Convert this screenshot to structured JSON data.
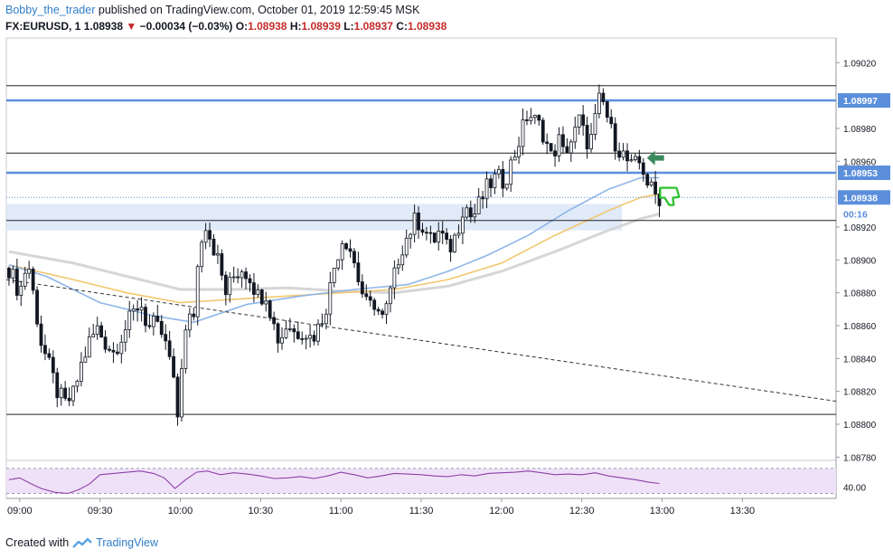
{
  "header": {
    "author": "Bobby_the_trader",
    "published": "published on TradingView.com, October 01, 2019 12:59:45 MSK",
    "symbol": "FX:EURUSD, 1",
    "price": "1.08938",
    "change_arrow": "▼",
    "change": "−0.00034 (−0.03%)",
    "o_label": "O:",
    "o_value": "1.08938",
    "h_label": "H:",
    "h_value": "1.08939",
    "l_label": "L:",
    "l_value": "1.08937",
    "c_label": "C:",
    "c_value": "1.08938"
  },
  "footer": {
    "created_with": "Created with",
    "brand": "TradingView",
    "logo_icon": "tradingview-logo-icon"
  },
  "colors": {
    "candle": "#131722",
    "sma_blue": "#8fb6e8",
    "sma_yellow": "#f2c66d",
    "sma_gray": "#d6d6d6",
    "level_blue": "#5b8fdc",
    "zone": "#dbe6f7",
    "rsi_line": "#8e3fa8",
    "rsi_band": "#efe2f8",
    "arrow_green": "#3b8a5e",
    "thumb_green": "#2cc12c"
  },
  "chart_data": {
    "type": "candlestick",
    "symbol": "FX:EURUSD",
    "interval": "1",
    "ylim": [
      1.08778,
      1.09035
    ],
    "y_ticks": [
      1.0878,
      1.088,
      1.0882,
      1.0884,
      1.0886,
      1.0888,
      1.089,
      1.0892,
      1.0896,
      1.0898,
      1.0902
    ],
    "y_tick_labels": [
      "1.08780",
      "1.08800",
      "1.08820",
      "1.08840",
      "1.08860",
      "1.08880",
      "1.08900",
      "1.08920",
      "1.08960",
      "1.08980",
      "1.09020"
    ],
    "x_ticks": [
      "09:00",
      "09:30",
      "10:00",
      "10:30",
      "11:00",
      "11:30",
      "12:00",
      "12:30",
      "13:00",
      "13:30"
    ],
    "x_tick_minutes": [
      540,
      570,
      600,
      630,
      660,
      690,
      720,
      750,
      780,
      810
    ],
    "xlim_minutes": [
      535,
      845
    ],
    "last_bar_minute": 779,
    "close_path": [
      [
        536,
        1.08895
      ],
      [
        540,
        1.0888
      ],
      [
        543,
        1.089
      ],
      [
        546,
        1.0887
      ],
      [
        548,
        1.0885
      ],
      [
        551,
        1.08835
      ],
      [
        554,
        1.0882
      ],
      [
        557,
        1.08812
      ],
      [
        560,
        1.08818
      ],
      [
        563,
        1.08836
      ],
      [
        566,
        1.0885
      ],
      [
        569,
        1.08858
      ],
      [
        572,
        1.0885
      ],
      [
        575,
        1.08844
      ],
      [
        578,
        1.08854
      ],
      [
        582,
        1.08866
      ],
      [
        585,
        1.08875
      ],
      [
        588,
        1.08858
      ],
      [
        590,
        1.0886
      ],
      [
        593,
        1.08855
      ],
      [
        596,
        1.0884
      ],
      [
        598,
        1.08818
      ],
      [
        599,
        1.08805
      ],
      [
        601,
        1.08848
      ],
      [
        603,
        1.08862
      ],
      [
        605,
        1.08868
      ],
      [
        607,
        1.08905
      ],
      [
        609,
        1.08925
      ],
      [
        611,
        1.08915
      ],
      [
        614,
        1.089
      ],
      [
        617,
        1.0888
      ],
      [
        620,
        1.0889
      ],
      [
        623,
        1.08895
      ],
      [
        626,
        1.0889
      ],
      [
        629,
        1.08878
      ],
      [
        632,
        1.0888
      ],
      [
        635,
        1.0886
      ],
      [
        637,
        1.0885
      ],
      [
        640,
        1.08862
      ],
      [
        643,
        1.08855
      ],
      [
        646,
        1.08858
      ],
      [
        649,
        1.08852
      ],
      [
        652,
        1.0886
      ],
      [
        655,
        1.08875
      ],
      [
        658,
        1.089
      ],
      [
        661,
        1.08915
      ],
      [
        664,
        1.08905
      ],
      [
        667,
        1.08885
      ],
      [
        670,
        1.0887
      ],
      [
        673,
        1.08875
      ],
      [
        675,
        1.08862
      ],
      [
        677,
        1.0887
      ],
      [
        680,
        1.0889
      ],
      [
        682,
        1.08905
      ],
      [
        685,
        1.08915
      ],
      [
        688,
        1.08925
      ],
      [
        691,
        1.0892
      ],
      [
        694,
        1.0891
      ],
      [
        697,
        1.08918
      ],
      [
        700,
        1.08905
      ],
      [
        703,
        1.08915
      ],
      [
        706,
        1.08935
      ],
      [
        709,
        1.08925
      ],
      [
        712,
        1.08935
      ],
      [
        715,
        1.08945
      ],
      [
        718,
        1.0895
      ],
      [
        721,
        1.08948
      ],
      [
        724,
        1.0896
      ],
      [
        726,
        1.0897
      ],
      [
        728,
        1.0898
      ],
      [
        730,
        1.0899
      ],
      [
        732,
        1.08985
      ],
      [
        735,
        1.0898
      ],
      [
        737,
        1.0897
      ],
      [
        739,
        1.0896
      ],
      [
        741,
        1.08975
      ],
      [
        743,
        1.08965
      ],
      [
        745,
        1.0897
      ],
      [
        747,
        1.08975
      ],
      [
        749,
        1.08985
      ],
      [
        751,
        1.08975
      ],
      [
        753,
        1.0897
      ],
      [
        755,
        1.08985
      ],
      [
        757,
        1.09
      ],
      [
        759,
        1.0899
      ],
      [
        761,
        1.08978
      ],
      [
        763,
        1.0897
      ],
      [
        765,
        1.08965
      ],
      [
        767,
        1.0896
      ],
      [
        769,
        1.08955
      ],
      [
        771,
        1.0896
      ],
      [
        773,
        1.08955
      ],
      [
        775,
        1.08945
      ],
      [
        777,
        1.0894
      ],
      [
        779,
        1.08938
      ]
    ],
    "sma_blue": [
      [
        536,
        1.08897
      ],
      [
        550,
        1.0889
      ],
      [
        570,
        1.08874
      ],
      [
        590,
        1.08866
      ],
      [
        605,
        1.08862
      ],
      [
        625,
        1.08873
      ],
      [
        645,
        1.08878
      ],
      [
        665,
        1.08882
      ],
      [
        685,
        1.08885
      ],
      [
        700,
        1.08893
      ],
      [
        715,
        1.08903
      ],
      [
        730,
        1.08915
      ],
      [
        745,
        1.0893
      ],
      [
        760,
        1.08943
      ],
      [
        772,
        1.0895
      ],
      [
        779,
        1.0895
      ]
    ],
    "sma_yellow": [
      [
        536,
        1.08897
      ],
      [
        560,
        1.08888
      ],
      [
        580,
        1.0888
      ],
      [
        600,
        1.08874
      ],
      [
        620,
        1.08876
      ],
      [
        640,
        1.08878
      ],
      [
        660,
        1.0888
      ],
      [
        680,
        1.08882
      ],
      [
        700,
        1.08888
      ],
      [
        720,
        1.08898
      ],
      [
        740,
        1.08915
      ],
      [
        760,
        1.0893
      ],
      [
        772,
        1.08938
      ],
      [
        779,
        1.0894
      ]
    ],
    "sma_gray": [
      [
        536,
        1.08905
      ],
      [
        560,
        1.08898
      ],
      [
        580,
        1.0889
      ],
      [
        600,
        1.08882
      ],
      [
        620,
        1.08882
      ],
      [
        640,
        1.08883
      ],
      [
        660,
        1.08881
      ],
      [
        680,
        1.0888
      ],
      [
        700,
        1.08884
      ],
      [
        720,
        1.08893
      ],
      [
        740,
        1.08905
      ],
      [
        760,
        1.08918
      ],
      [
        772,
        1.08925
      ],
      [
        779,
        1.08928
      ]
    ],
    "horizontal_lines": [
      {
        "price": 1.09006,
        "style": "black"
      },
      {
        "price": 1.08997,
        "style": "blue",
        "label": "1.08997"
      },
      {
        "price": 1.08965,
        "style": "black"
      },
      {
        "price": 1.08953,
        "style": "blue",
        "label": "1.08953"
      },
      {
        "price": 1.08924,
        "style": "black"
      },
      {
        "price": 1.08806,
        "style": "black"
      }
    ],
    "zone": {
      "price_top": 1.08934,
      "price_bottom": 1.08918,
      "from_minute": 535,
      "to_minute": 765
    },
    "trendline": {
      "from": [
        535,
        1.08888
      ],
      "to": [
        845,
        1.08814
      ],
      "style": "dashed"
    },
    "last_price": {
      "value": "1.08938",
      "countdown": "00:16"
    },
    "annotations": [
      "green-arrow-left-icon",
      "thumbs-down-icon"
    ],
    "rsi": {
      "axis_label": "40.00",
      "band": [
        30,
        70
      ],
      "points": [
        [
          536,
          52
        ],
        [
          540,
          55
        ],
        [
          544,
          46
        ],
        [
          548,
          38
        ],
        [
          553,
          32
        ],
        [
          558,
          30
        ],
        [
          562,
          36
        ],
        [
          566,
          45
        ],
        [
          570,
          60
        ],
        [
          575,
          62
        ],
        [
          580,
          64
        ],
        [
          585,
          66
        ],
        [
          590,
          62
        ],
        [
          594,
          55
        ],
        [
          598,
          38
        ],
        [
          602,
          52
        ],
        [
          606,
          64
        ],
        [
          610,
          66
        ],
        [
          615,
          60
        ],
        [
          620,
          63
        ],
        [
          625,
          61
        ],
        [
          630,
          58
        ],
        [
          635,
          54
        ],
        [
          640,
          55
        ],
        [
          645,
          57
        ],
        [
          650,
          54
        ],
        [
          655,
          58
        ],
        [
          660,
          64
        ],
        [
          665,
          60
        ],
        [
          670,
          55
        ],
        [
          675,
          58
        ],
        [
          680,
          62
        ],
        [
          685,
          61
        ],
        [
          690,
          60
        ],
        [
          695,
          58
        ],
        [
          700,
          57
        ],
        [
          705,
          60
        ],
        [
          710,
          58
        ],
        [
          715,
          62
        ],
        [
          720,
          63
        ],
        [
          725,
          64
        ],
        [
          730,
          66
        ],
        [
          735,
          63
        ],
        [
          740,
          60
        ],
        [
          745,
          61
        ],
        [
          750,
          60
        ],
        [
          755,
          63
        ],
        [
          760,
          58
        ],
        [
          765,
          55
        ],
        [
          770,
          52
        ],
        [
          775,
          48
        ],
        [
          779,
          46
        ]
      ]
    }
  }
}
